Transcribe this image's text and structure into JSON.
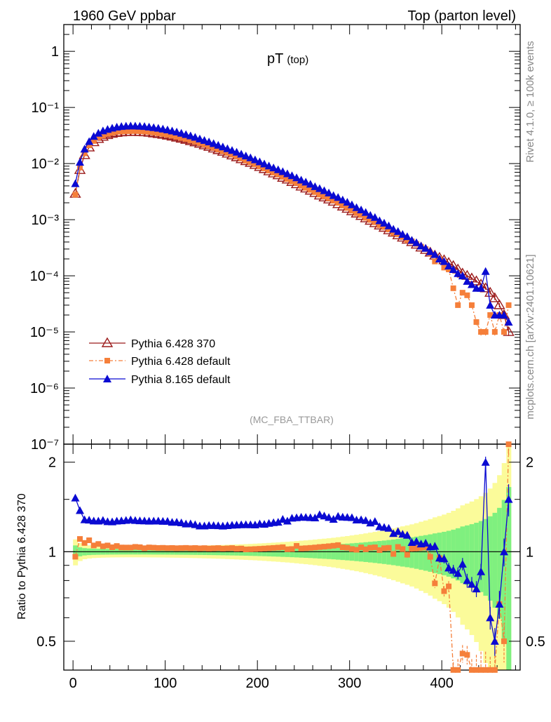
{
  "header": {
    "left": "1960 GeV ppbar",
    "right": "Top (parton level)"
  },
  "side_labels": {
    "rivet": "Rivet 4.1.0, ≥ 100k events",
    "mcplots": "mcplots.cern.ch [arXiv:2401.10621]"
  },
  "colors": {
    "pythia6_370": "#9b1b1b",
    "pythia6_default": "#f57f3a",
    "pythia8": "#0a0ad2",
    "band_inner": "#7ff07f",
    "band_outer": "#fbfb9a"
  },
  "chart_data": {
    "type": "line",
    "title": "pT",
    "title_sub": "(top)",
    "analysis_tag": "(MC_FBA_TTBAR)",
    "xlim": [
      -10,
      485
    ],
    "ylim_main": [
      1e-07,
      3
    ],
    "yscale_main": "log",
    "y_ticks_main": [
      "10⁻⁷",
      "10⁻⁶",
      "10⁻⁵",
      "10⁻⁴",
      "10⁻³",
      "10⁻²",
      "10⁻¹",
      "1"
    ],
    "x_ticks": [
      "0",
      "100",
      "200",
      "300",
      "400"
    ],
    "ratio_ylabel": "Ratio to Pythia 6.428 370",
    "ylim_ratio": [
      0.4,
      2.3
    ],
    "y_ticks_ratio": [
      "0.5",
      "1",
      "2"
    ],
    "legend": [
      "Pythia 6.428 370",
      "Pythia 6.428 default",
      "Pythia 8.165 default"
    ],
    "legend_position": "lower-left",
    "series": [
      {
        "name": "Pythia 6.428 370",
        "x": [
          2.5,
          7.5,
          12.5,
          17.5,
          22.5,
          27.5,
          32.5,
          37.5,
          42.5,
          47.5,
          52.5,
          57.5,
          62.5,
          67.5,
          72.5,
          77.5,
          82.5,
          87.5,
          92.5,
          97.5,
          102.5,
          107.5,
          112.5,
          117.5,
          122.5,
          127.5,
          132.5,
          137.5,
          142.5,
          147.5,
          152.5,
          157.5,
          162.5,
          167.5,
          172.5,
          177.5,
          182.5,
          187.5,
          192.5,
          197.5,
          202.5,
          207.5,
          212.5,
          217.5,
          222.5,
          227.5,
          232.5,
          237.5,
          242.5,
          247.5,
          252.5,
          257.5,
          262.5,
          267.5,
          272.5,
          277.5,
          282.5,
          287.5,
          292.5,
          297.5,
          302.5,
          307.5,
          312.5,
          317.5,
          322.5,
          327.5,
          332.5,
          337.5,
          342.5,
          347.5,
          352.5,
          357.5,
          362.5,
          367.5,
          372.5,
          377.5,
          382.5,
          387.5,
          392.5,
          397.5,
          402.5,
          407.5,
          412.5,
          417.5,
          422.5,
          427.5,
          432.5,
          437.5,
          442.5,
          447.5,
          452.5,
          457.5,
          462.5,
          467.5,
          472.5
        ],
        "values": [
          0.0029,
          0.0077,
          0.0142,
          0.0194,
          0.0241,
          0.0275,
          0.0301,
          0.0323,
          0.0341,
          0.0353,
          0.0361,
          0.0366,
          0.0367,
          0.0367,
          0.0365,
          0.0362,
          0.0355,
          0.0346,
          0.0337,
          0.0327,
          0.0316,
          0.0304,
          0.0291,
          0.0278,
          0.0266,
          0.0252,
          0.0239,
          0.0226,
          0.0212,
          0.0199,
          0.0186,
          0.0174,
          0.0163,
          0.0151,
          0.014,
          0.013,
          0.012,
          0.0111,
          0.0103,
          0.0095,
          0.0087,
          0.008,
          0.0073,
          0.0067,
          0.0062,
          0.0056,
          0.0052,
          0.0047,
          0.0043,
          0.0039,
          0.0036,
          0.0033,
          0.003,
          0.0027,
          0.0025,
          0.0023,
          0.0021,
          0.0019,
          0.00172,
          0.00157,
          0.00142,
          0.00129,
          0.00117,
          0.00106,
          0.00096,
          0.00087,
          0.00079,
          0.00072,
          0.00065,
          0.00059,
          0.00053,
          0.00048,
          0.00044,
          0.0004,
          0.00036,
          0.00032,
          0.00029,
          0.00026,
          0.00023,
          0.00021,
          0.00019,
          0.00017,
          0.00015,
          0.00013,
          0.00011,
          0.0001,
          9e-05,
          8e-05,
          7e-05,
          6e-05,
          5e-05,
          4e-05,
          3e-05,
          2e-05,
          1e-05
        ]
      },
      {
        "name": "Pythia 6.428 default",
        "x": [
          2.5,
          7.5,
          12.5,
          17.5,
          22.5,
          27.5,
          32.5,
          37.5,
          42.5,
          47.5,
          52.5,
          57.5,
          62.5,
          67.5,
          72.5,
          77.5,
          82.5,
          87.5,
          92.5,
          97.5,
          102.5,
          107.5,
          112.5,
          117.5,
          122.5,
          127.5,
          132.5,
          137.5,
          142.5,
          147.5,
          152.5,
          157.5,
          162.5,
          167.5,
          172.5,
          177.5,
          182.5,
          187.5,
          192.5,
          197.5,
          202.5,
          207.5,
          212.5,
          217.5,
          222.5,
          227.5,
          232.5,
          237.5,
          242.5,
          247.5,
          252.5,
          257.5,
          262.5,
          267.5,
          272.5,
          277.5,
          282.5,
          287.5,
          292.5,
          297.5,
          302.5,
          307.5,
          312.5,
          317.5,
          322.5,
          327.5,
          332.5,
          337.5,
          342.5,
          347.5,
          352.5,
          357.5,
          362.5,
          367.5,
          372.5,
          377.5,
          382.5,
          387.5,
          392.5,
          397.5,
          402.5,
          407.5,
          412.5,
          417.5,
          422.5,
          427.5,
          432.5,
          437.5,
          442.5,
          447.5,
          452.5,
          457.5,
          462.5,
          467.5,
          472.5
        ],
        "values": [
          0.00279,
          0.0085,
          0.0152,
          0.0212,
          0.0253,
          0.0292,
          0.0314,
          0.0339,
          0.0353,
          0.0369,
          0.0373,
          0.0378,
          0.0379,
          0.0381,
          0.0378,
          0.0372,
          0.0367,
          0.0357,
          0.0347,
          0.0337,
          0.0325,
          0.0313,
          0.0299,
          0.0286,
          0.0274,
          0.0259,
          0.0246,
          0.0232,
          0.0218,
          0.0204,
          0.0191,
          0.0179,
          0.0167,
          0.0155,
          0.0144,
          0.0133,
          0.0123,
          0.0113,
          0.0105,
          0.0097,
          0.0089,
          0.0082,
          0.0075,
          0.0069,
          0.0064,
          0.0058,
          0.0053,
          0.0048,
          0.0045,
          0.004,
          0.0037,
          0.0034,
          0.0031,
          0.0028,
          0.0026,
          0.0024,
          0.0022,
          0.002,
          0.00178,
          0.00162,
          0.00145,
          0.00131,
          0.00121,
          0.00108,
          0.00099,
          0.0009,
          0.0008,
          0.00074,
          0.00067,
          0.00058,
          0.00055,
          0.00049,
          0.00043,
          0.00041,
          0.00037,
          0.00033,
          0.0003,
          0.00025,
          0.00018,
          0.0002,
          0.00014,
          0.00013,
          6e-05,
          3e-05,
          5e-05,
          4.5e-05,
          3e-05,
          1.5e-05,
          1e-05,
          1e-05,
          2e-05,
          1e-05,
          2e-05,
          1e-05,
          3e-05
        ]
      },
      {
        "name": "Pythia 8.165 default",
        "x": [
          2.5,
          7.5,
          12.5,
          17.5,
          22.5,
          27.5,
          32.5,
          37.5,
          42.5,
          47.5,
          52.5,
          57.5,
          62.5,
          67.5,
          72.5,
          77.5,
          82.5,
          87.5,
          92.5,
          97.5,
          102.5,
          107.5,
          112.5,
          117.5,
          122.5,
          127.5,
          132.5,
          137.5,
          142.5,
          147.5,
          152.5,
          157.5,
          162.5,
          167.5,
          172.5,
          177.5,
          182.5,
          187.5,
          192.5,
          197.5,
          202.5,
          207.5,
          212.5,
          217.5,
          222.5,
          227.5,
          232.5,
          237.5,
          242.5,
          247.5,
          252.5,
          257.5,
          262.5,
          267.5,
          272.5,
          277.5,
          282.5,
          287.5,
          292.5,
          297.5,
          302.5,
          307.5,
          312.5,
          317.5,
          322.5,
          327.5,
          332.5,
          337.5,
          342.5,
          347.5,
          352.5,
          357.5,
          362.5,
          367.5,
          372.5,
          377.5,
          382.5,
          387.5,
          392.5,
          397.5,
          402.5,
          407.5,
          412.5,
          417.5,
          422.5,
          427.5,
          432.5,
          437.5,
          442.5,
          447.5,
          452.5,
          457.5,
          462.5,
          467.5,
          472.5
        ],
        "values": [
          0.0044,
          0.0106,
          0.0182,
          0.0248,
          0.0306,
          0.0349,
          0.0384,
          0.0408,
          0.043,
          0.0448,
          0.0459,
          0.0467,
          0.047,
          0.0468,
          0.0464,
          0.046,
          0.045,
          0.0439,
          0.0428,
          0.0414,
          0.04,
          0.0382,
          0.0366,
          0.0348,
          0.033,
          0.0313,
          0.0295,
          0.0276,
          0.0259,
          0.0244,
          0.0228,
          0.0213,
          0.0199,
          0.0185,
          0.0172,
          0.016,
          0.0148,
          0.0137,
          0.0127,
          0.0117,
          0.0108,
          0.0099,
          0.0091,
          0.0084,
          0.0078,
          0.0072,
          0.0066,
          0.0061,
          0.0056,
          0.0051,
          0.0047,
          0.0043,
          0.0039,
          0.0036,
          0.0033,
          0.003,
          0.0027,
          0.0025,
          0.00225,
          0.00205,
          0.00185,
          0.00165,
          0.0015,
          0.00135,
          0.0012,
          0.0011,
          0.00096,
          0.00087,
          0.00078,
          0.00068,
          0.00062,
          0.00055,
          0.0005,
          0.00043,
          0.00039,
          0.00034,
          0.00031,
          0.00027,
          0.00024,
          0.0002,
          0.00018,
          0.00015,
          0.00013,
          0.00011,
          0.0001,
          8e-05,
          7e-05,
          6e-05,
          6e-05,
          0.00012,
          3e-05,
          2e-05,
          2e-05,
          2e-05,
          1.5e-05
        ]
      }
    ]
  }
}
